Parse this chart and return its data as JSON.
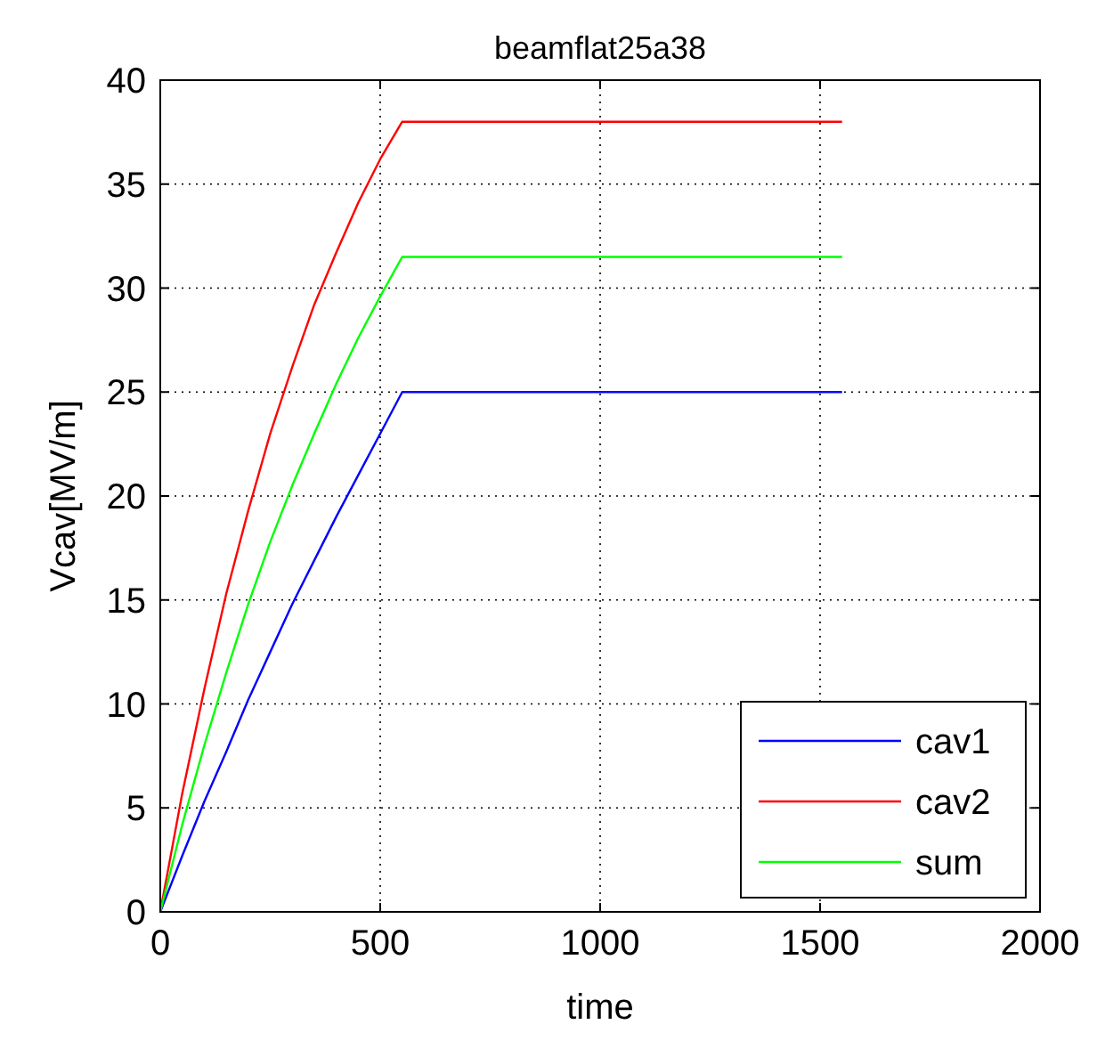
{
  "chart_data": {
    "type": "line",
    "title": "beamflat25a38",
    "xlabel": "time",
    "ylabel": "Vcav[MV/m]",
    "x": [
      0,
      50,
      100,
      150,
      200,
      250,
      300,
      350,
      400,
      450,
      500,
      550,
      1550
    ],
    "series": [
      {
        "name": "cav1",
        "color": "#0000ff",
        "values": [
          0,
          2.7,
          5.3,
          7.7,
          10.2,
          12.5,
          14.8,
          16.9,
          19,
          21,
          23,
          25,
          25
        ]
      },
      {
        "name": "cav2",
        "color": "#ff0000",
        "values": [
          0,
          5.7,
          10.7,
          15.3,
          19.3,
          23,
          26.2,
          29.2,
          31.7,
          34.1,
          36.2,
          38,
          38
        ]
      },
      {
        "name": "sum",
        "color": "#00ff00",
        "values": [
          0,
          4.2,
          8,
          11.5,
          14.8,
          17.8,
          20.5,
          23,
          25.4,
          27.6,
          29.6,
          31.5,
          31.5
        ]
      }
    ],
    "xlim": [
      0,
      2000
    ],
    "xticks": [
      0,
      500,
      1000,
      1500,
      2000
    ],
    "ylim": [
      0,
      40
    ],
    "yticks": [
      0,
      5,
      10,
      15,
      20,
      25,
      30,
      35,
      40
    ],
    "grid": true,
    "legend": "bottom right",
    "line_style": "solid",
    "marker": "none"
  }
}
